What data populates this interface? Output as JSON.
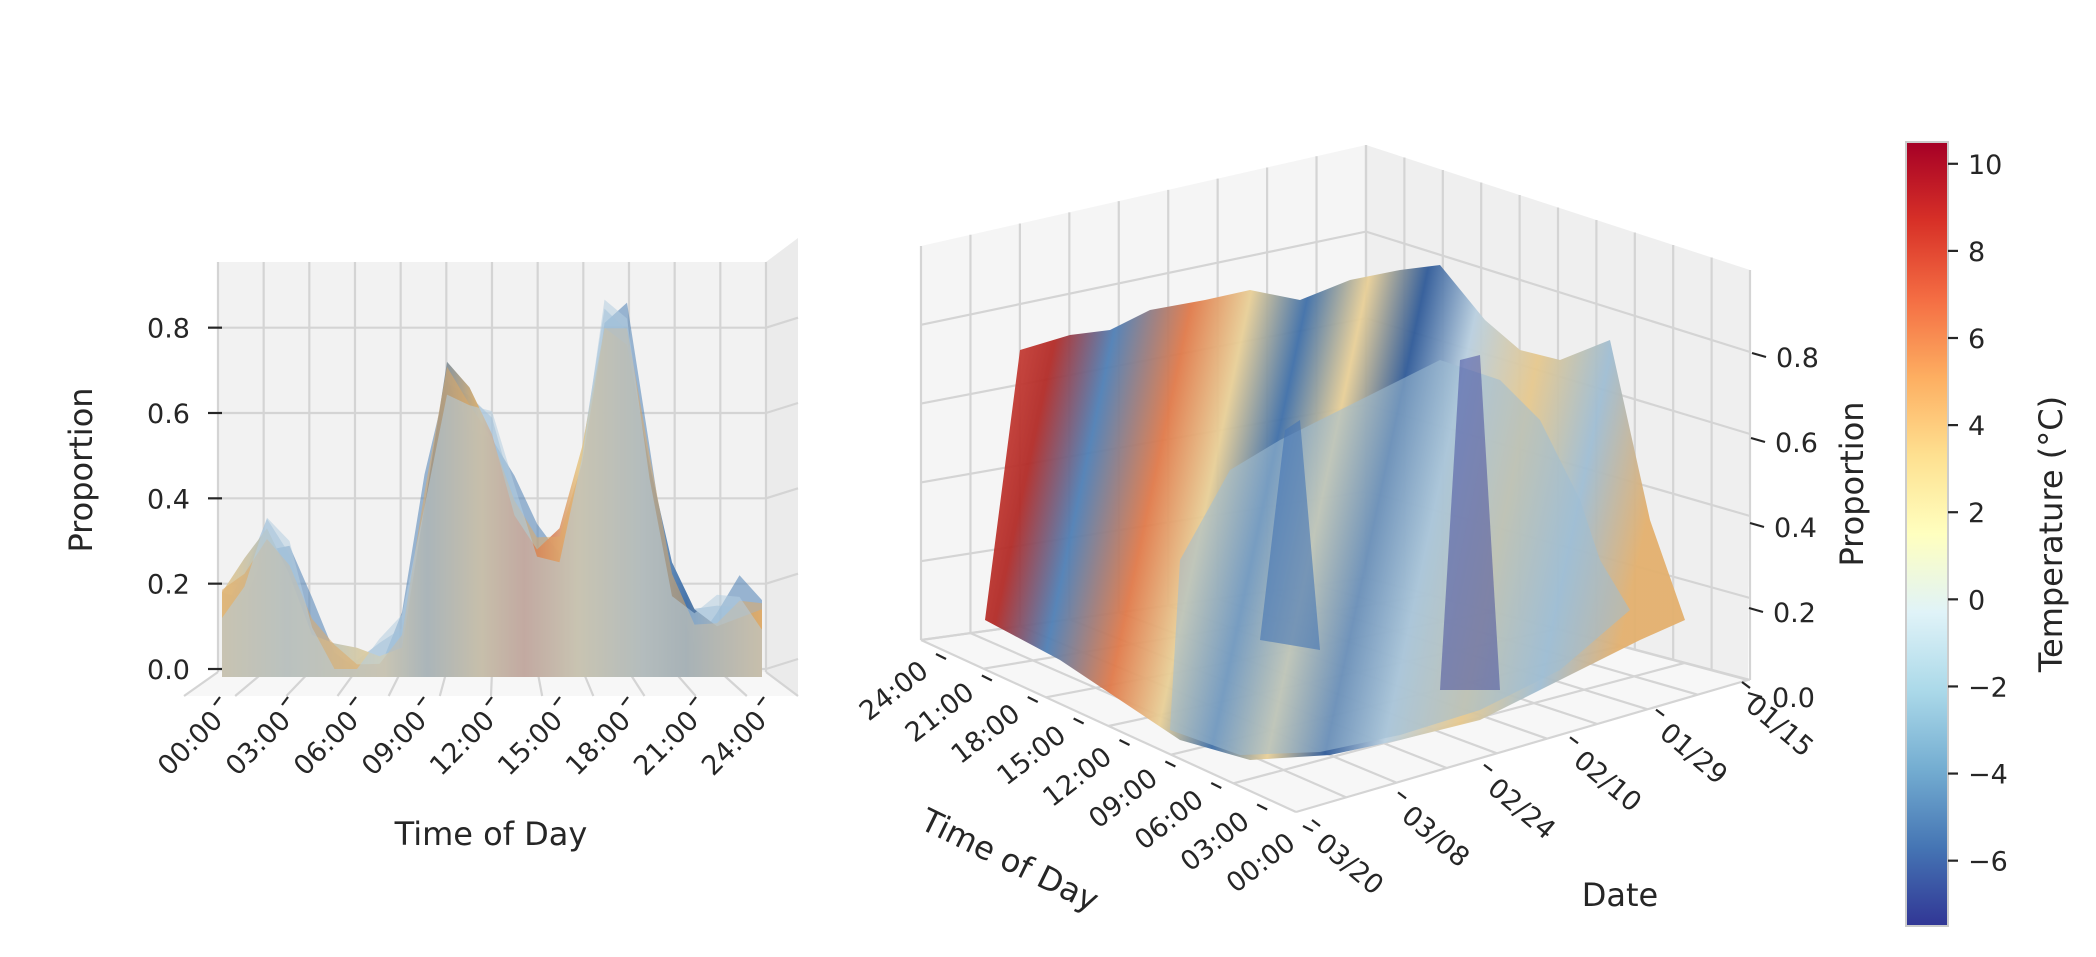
{
  "colors": {
    "scale": [
      "#313695",
      "#4575b4",
      "#74add1",
      "#abd9e9",
      "#e0f3f8",
      "#ffffbf",
      "#fee090",
      "#fdae61",
      "#f46d43",
      "#d73027",
      "#a50026"
    ]
  },
  "chart_data": [
    {
      "type": "surface",
      "view": "side",
      "xlabel": "Time of Day",
      "ylabel": "Proportion",
      "x_ticks": [
        "00:00",
        "03:00",
        "06:00",
        "09:00",
        "12:00",
        "15:00",
        "18:00",
        "21:00",
        "24:00"
      ],
      "y_ticks": [
        "0.0",
        "0.2",
        "0.4",
        "0.6",
        "0.8"
      ],
      "ylim": [
        0,
        0.95
      ],
      "profile": {
        "hours": [
          0,
          1,
          2,
          3,
          4,
          5,
          6,
          7,
          8,
          9,
          10,
          11,
          12,
          13,
          14,
          15,
          16,
          17,
          18,
          19,
          20,
          21,
          22,
          23,
          24
        ],
        "proportion": [
          0.18,
          0.26,
          0.33,
          0.22,
          0.08,
          0.06,
          0.05,
          0.03,
          0.05,
          0.38,
          0.72,
          0.66,
          0.55,
          0.36,
          0.28,
          0.33,
          0.52,
          0.8,
          0.76,
          0.48,
          0.25,
          0.14,
          0.1,
          0.12,
          0.14
        ]
      }
    },
    {
      "type": "surface",
      "view": "3d",
      "xlabel": "Time of Day",
      "ylabel": "Date",
      "zlabel": "Proportion",
      "x_ticks": [
        "24:00",
        "21:00",
        "18:00",
        "15:00",
        "12:00",
        "09:00",
        "06:00",
        "03:00",
        "00:00"
      ],
      "y_ticks": [
        "03/20",
        "03/08",
        "02/24",
        "02/10",
        "01/29",
        "01/15"
      ],
      "z_ticks": [
        "0.0",
        "0.2",
        "0.4",
        "0.6",
        "0.8"
      ],
      "zlim": [
        0,
        0.95
      ]
    }
  ],
  "colorbar": {
    "label": "Temperature (°C)",
    "range": [
      -7.5,
      10.5
    ],
    "ticks": [
      "10",
      "8",
      "6",
      "4",
      "2",
      "0",
      "−2",
      "−4",
      "−6"
    ],
    "tick_values": [
      10,
      8,
      6,
      4,
      2,
      0,
      -2,
      -4,
      -6
    ]
  }
}
